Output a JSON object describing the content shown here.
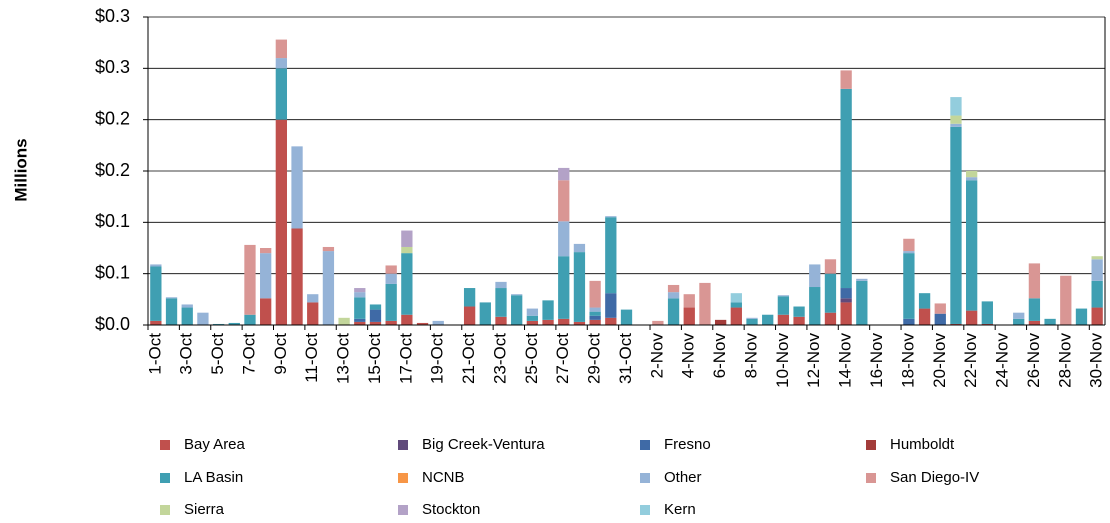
{
  "chart_data": {
    "type": "stacked_bar",
    "y_label": "Millions",
    "categories": [
      "1-Oct",
      null,
      "3-Oct",
      null,
      "5-Oct",
      null,
      "7-Oct",
      null,
      "9-Oct",
      null,
      "11-Oct",
      null,
      "13-Oct",
      null,
      "15-Oct",
      null,
      "17-Oct",
      null,
      "19-Oct",
      null,
      "21-Oct",
      null,
      "23-Oct",
      null,
      "25-Oct",
      null,
      "27-Oct",
      null,
      "29-Oct",
      null,
      "31-Oct",
      null,
      "2-Nov",
      null,
      "4-Nov",
      null,
      "6-Nov",
      null,
      "8-Nov",
      null,
      "10-Nov",
      null,
      "12-Nov",
      null,
      "14-Nov",
      null,
      "16-Nov",
      null,
      "18-Nov",
      null,
      "20-Nov",
      null,
      "22-Nov",
      null,
      "24-Nov",
      null,
      "26-Nov",
      null,
      "28-Nov",
      null,
      "30-Nov"
    ],
    "series": [
      {
        "name": "Bay Area",
        "color": "#c0504d",
        "values": [
          0.004,
          0,
          0,
          0,
          0,
          0,
          0,
          0.026,
          0.2,
          0.094,
          0.022,
          0,
          0,
          0.003,
          0.003,
          0.004,
          0.01,
          0.002,
          0,
          0,
          0.018,
          0,
          0.008,
          0,
          0.004,
          0.005,
          0.006,
          0.003,
          0.005,
          0.007,
          0,
          0,
          0,
          0,
          0.017,
          0,
          0,
          0.017,
          0,
          0,
          0.01,
          0.008,
          0,
          0.012,
          0.022,
          0,
          0,
          0,
          0,
          0.016,
          0,
          0.001,
          0.014,
          0.001,
          0,
          0,
          0.004,
          0,
          0,
          0,
          0.017
        ]
      },
      {
        "name": "Big Creek-Ventura",
        "color": "#604a7b",
        "values": [
          0,
          0,
          0,
          0,
          0,
          0,
          0,
          0,
          0,
          0,
          0,
          0,
          0,
          0,
          0,
          0,
          0,
          0,
          0,
          0,
          0,
          0,
          0,
          0,
          0,
          0,
          0,
          0,
          0,
          0,
          0,
          0,
          0,
          0,
          0,
          0,
          0,
          0,
          0,
          0,
          0,
          0,
          0,
          0,
          0.004,
          0,
          0,
          0,
          0,
          0,
          0,
          0,
          0,
          0,
          0,
          0,
          0,
          0,
          0,
          0,
          0
        ]
      },
      {
        "name": "Fresno",
        "color": "#3f6aa6",
        "values": [
          0,
          0,
          0,
          0,
          0,
          0,
          0,
          0,
          0,
          0,
          0,
          0,
          0,
          0.003,
          0.012,
          0,
          0,
          0,
          0,
          0,
          0,
          0,
          0,
          0,
          0,
          0,
          0,
          0,
          0.004,
          0.024,
          0,
          0,
          0,
          0,
          0,
          0,
          0,
          0,
          0,
          0,
          0,
          0,
          0,
          0,
          0.01,
          0,
          0,
          0,
          0.006,
          0,
          0.011,
          0,
          0,
          0,
          0,
          0,
          0,
          0,
          0,
          0,
          0
        ]
      },
      {
        "name": "Humboldt",
        "color": "#a33c3a",
        "values": [
          0,
          0,
          0,
          0,
          0,
          0,
          0,
          0,
          0,
          0,
          0,
          0,
          0,
          0,
          0,
          0,
          0,
          0,
          0,
          0,
          0,
          0,
          0,
          0,
          0,
          0,
          0,
          0,
          0,
          0,
          0,
          0,
          0,
          0,
          0,
          0,
          0.005,
          0,
          0,
          0,
          0,
          0,
          0,
          0,
          0,
          0,
          0,
          0,
          0,
          0,
          0,
          0,
          0,
          0,
          0,
          0,
          0,
          0,
          0,
          0,
          0
        ]
      },
      {
        "name": "LA Basin",
        "color": "#3f9fb2",
        "values": [
          0.053,
          0.026,
          0.017,
          0,
          0.001,
          0.002,
          0.01,
          0,
          0.05,
          0,
          0,
          0,
          0,
          0.021,
          0.005,
          0.036,
          0.06,
          0,
          0,
          0,
          0.018,
          0.022,
          0.028,
          0.029,
          0.005,
          0.019,
          0.061,
          0.068,
          0.004,
          0.074,
          0.015,
          0,
          0,
          0.026,
          0,
          0,
          0,
          0.005,
          0.006,
          0.01,
          0.018,
          0.01,
          0.037,
          0.038,
          0.194,
          0.043,
          0,
          0,
          0.064,
          0.015,
          0,
          0.192,
          0.127,
          0.022,
          0,
          0.006,
          0.022,
          0.006,
          0,
          0.016,
          0.026
        ]
      },
      {
        "name": "NCNB",
        "color": "#f79646",
        "values": [
          0,
          0,
          0,
          0,
          0,
          0,
          0,
          0,
          0,
          0,
          0,
          0,
          0,
          0,
          0,
          0,
          0,
          0,
          0,
          0,
          0,
          0,
          0,
          0,
          0,
          0,
          0,
          0,
          0,
          0,
          0,
          0,
          0,
          0,
          0,
          0,
          0,
          0,
          0,
          0,
          0,
          0,
          0,
          0,
          0,
          0,
          0,
          0,
          0,
          0,
          0,
          0,
          0,
          0,
          0,
          0,
          0,
          0,
          0,
          0,
          0
        ]
      },
      {
        "name": "Other",
        "color": "#95b3d7",
        "values": [
          0.002,
          0.001,
          0.003,
          0.012,
          0,
          0,
          0,
          0.044,
          0.01,
          0.08,
          0.008,
          0.072,
          0,
          0.005,
          0,
          0.01,
          0,
          0,
          0.004,
          0,
          0,
          0,
          0.006,
          0.001,
          0.007,
          0,
          0.034,
          0.008,
          0.004,
          0.001,
          0,
          0,
          0,
          0.006,
          0,
          0,
          0,
          0,
          0.001,
          0,
          0.001,
          0,
          0.022,
          0,
          0,
          0.002,
          0,
          0,
          0.002,
          0,
          0,
          0.003,
          0.003,
          0,
          0,
          0.006,
          0,
          0,
          0,
          0,
          0.021
        ]
      },
      {
        "name": "San Diego-IV",
        "color": "#d99694",
        "values": [
          0,
          0,
          0,
          0,
          0,
          0,
          0.068,
          0.005,
          0.018,
          0,
          0,
          0.004,
          0,
          0,
          0,
          0.008,
          0,
          0,
          0,
          0,
          0,
          0,
          0,
          0,
          0,
          0,
          0.04,
          0,
          0.026,
          0,
          0,
          0,
          0.004,
          0.007,
          0.013,
          0.041,
          0,
          0,
          0,
          0,
          0,
          0,
          0,
          0.014,
          0.018,
          0,
          0,
          0,
          0.012,
          0,
          0.01,
          0,
          0,
          0,
          0,
          0,
          0.034,
          0,
          0.048,
          0,
          0
        ]
      },
      {
        "name": "Sierra",
        "color": "#c3d69b",
        "values": [
          0,
          0,
          0,
          0,
          0,
          0,
          0,
          0,
          0,
          0,
          0,
          0,
          0.007,
          0,
          0,
          0,
          0.006,
          0,
          0,
          0,
          0,
          0,
          0,
          0,
          0,
          0,
          0,
          0,
          0,
          0,
          0,
          0,
          0,
          0,
          0,
          0,
          0,
          0,
          0,
          0,
          0,
          0,
          0,
          0,
          0,
          0,
          0,
          0,
          0,
          0,
          0,
          0.008,
          0.006,
          0,
          0,
          0,
          0,
          0,
          0,
          0,
          0.003
        ]
      },
      {
        "name": "Stockton",
        "color": "#b3a2c7",
        "values": [
          0,
          0,
          0,
          0,
          0,
          0,
          0,
          0,
          0,
          0,
          0,
          0,
          0,
          0.004,
          0,
          0,
          0.016,
          0,
          0,
          0,
          0,
          0,
          0,
          0,
          0,
          0,
          0.012,
          0,
          0,
          0,
          0,
          0,
          0,
          0,
          0,
          0,
          0,
          0,
          0,
          0,
          0,
          0,
          0,
          0,
          0,
          0,
          0,
          0,
          0,
          0,
          0,
          0,
          0,
          0,
          0,
          0,
          0,
          0,
          0,
          0,
          0
        ]
      },
      {
        "name": "Kern",
        "color": "#93cddd",
        "values": [
          0,
          0,
          0,
          0,
          0,
          0,
          0,
          0,
          0,
          0,
          0,
          0,
          0,
          0,
          0,
          0,
          0,
          0,
          0,
          0,
          0,
          0,
          0,
          0,
          0,
          0,
          0,
          0,
          0,
          0,
          0,
          0,
          0,
          0,
          0,
          0,
          0,
          0.009,
          0,
          0,
          0,
          0,
          0,
          0,
          0,
          0,
          0,
          0,
          0,
          0,
          0,
          0.018,
          0,
          0,
          0,
          0,
          0,
          0,
          0,
          0,
          0
        ]
      }
    ],
    "ylim": [
      0,
      0.3
    ],
    "yticks": [
      {
        "value": 0,
        "label": "$0.0"
      },
      {
        "value": 0.05,
        "label": "$0.1"
      },
      {
        "value": 0.1,
        "label": "$0.1"
      },
      {
        "value": 0.15,
        "label": "$0.2"
      },
      {
        "value": 0.2,
        "label": "$0.2"
      },
      {
        "value": 0.25,
        "label": "$0.3"
      },
      {
        "value": 0.3,
        "label": "$0.3"
      }
    ],
    "grid": true,
    "legend": "bottom"
  }
}
